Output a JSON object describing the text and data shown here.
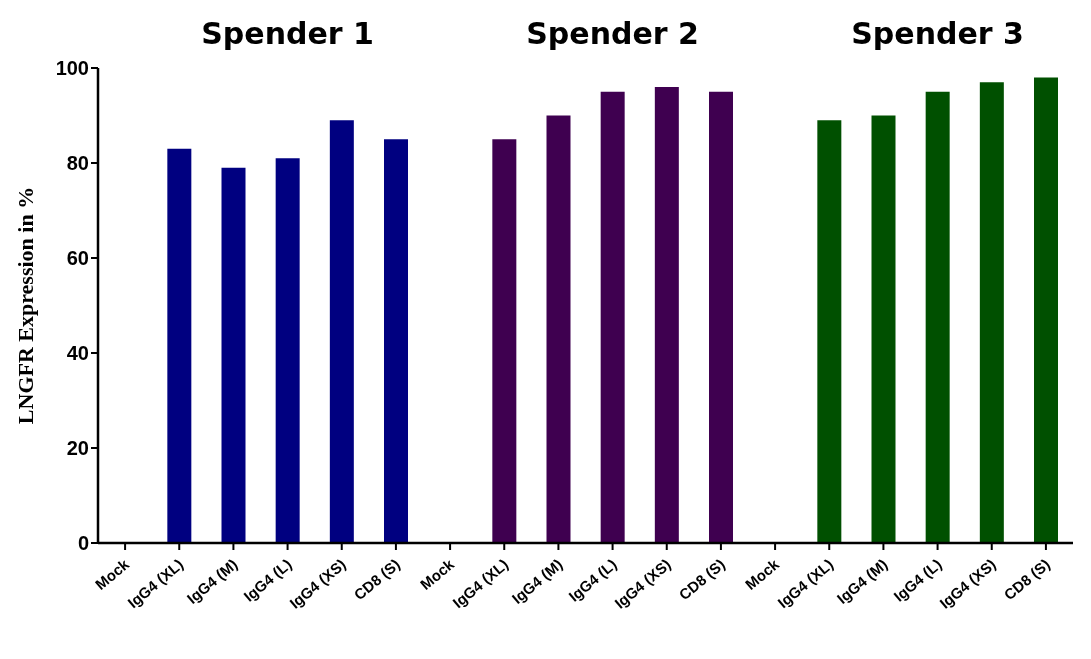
{
  "chart_data": {
    "type": "bar",
    "ylabel": "LNGFR Expression in %",
    "categories": [
      "Mock",
      "IgG4 (XL)",
      "IgG4 (M)",
      "IgG4 (L)",
      "IgG4 (XS)",
      "CD8 (S)",
      "Mock",
      "IgG4 (XL)",
      "IgG4 (M)",
      "IgG4 (L)",
      "IgG4 (XS)",
      "CD8 (S)",
      "Mock",
      "IgG4 (XL)",
      "IgG4 (M)",
      "IgG4 (L)",
      "IgG4 (XS)",
      "CD8 (S)"
    ],
    "values": [
      0,
      83,
      79,
      81,
      89,
      85,
      0,
      85,
      90,
      95,
      96,
      95,
      0,
      89,
      90,
      95,
      97,
      98
    ],
    "colors": [
      "#000080",
      "#000080",
      "#000080",
      "#000080",
      "#000080",
      "#000080",
      "#3f0050",
      "#3f0050",
      "#3f0050",
      "#3f0050",
      "#3f0050",
      "#3f0050",
      "#005000",
      "#005000",
      "#005000",
      "#005000",
      "#005000",
      "#005000"
    ],
    "annotations": [
      "Spender 1",
      "Spender 2",
      "Spender 3"
    ],
    "ylim": [
      0,
      100
    ],
    "yticks": [
      0,
      20,
      40,
      60,
      80,
      100
    ],
    "grid": false
  }
}
